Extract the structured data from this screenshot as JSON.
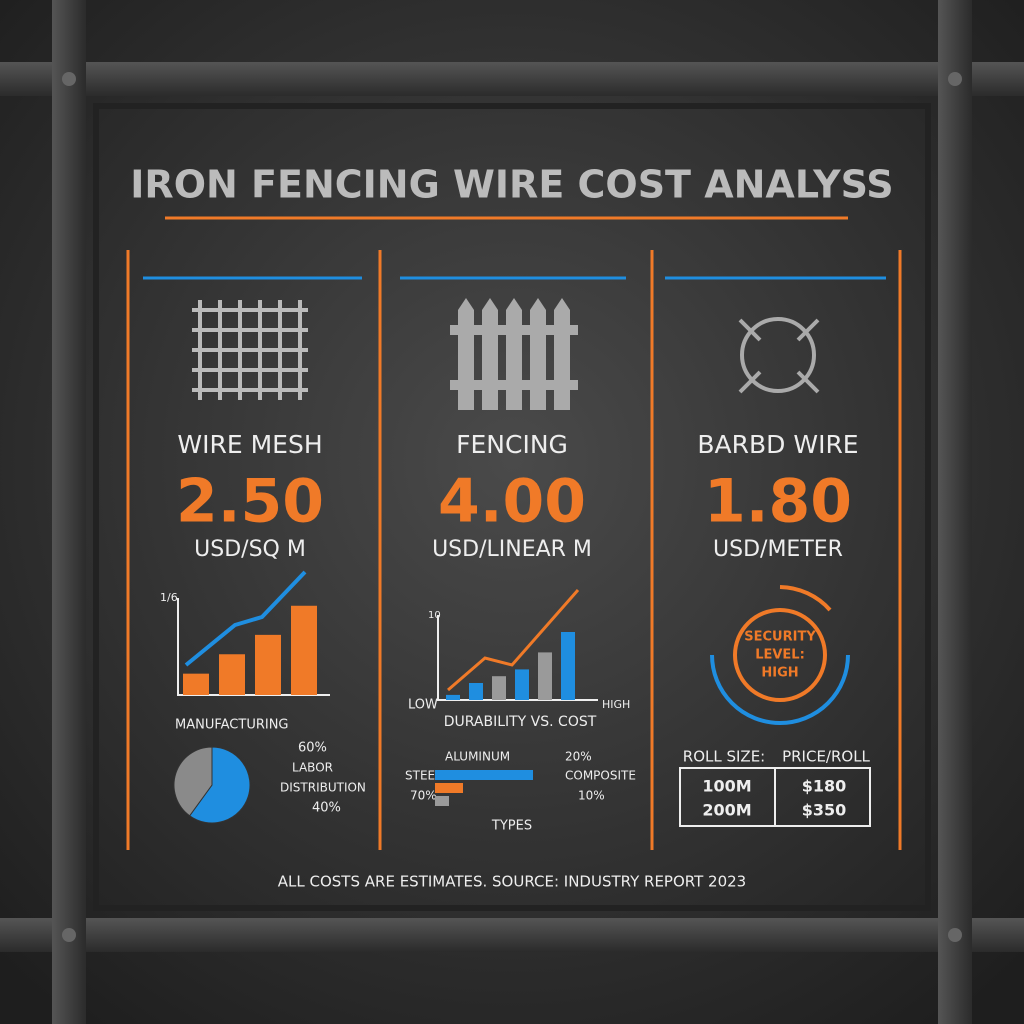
{
  "title": "IRON FENCING WIRE COST ANALYSS",
  "footer": "ALL COSTS ARE ESTIMATES. SOURCE: INDUSTRY REPORT 2023",
  "panels": [
    {
      "name": "WIRE MESH",
      "price": "2.50",
      "unit": "USD/SQ M"
    },
    {
      "name": "FENCING",
      "price": "4.00",
      "unit": "USD/LINEAR M"
    },
    {
      "name": "BARBD WIRE",
      "price": "1.80",
      "unit": "USD/METER"
    }
  ],
  "mesh_chart": {
    "type": "bar",
    "axis_label": "1/6",
    "values": [
      22,
      42,
      62,
      92
    ],
    "ylim": [
      0,
      100
    ],
    "color": "#f07a28"
  },
  "mesh_pie": {
    "type": "pie",
    "title": "MANUFACTURING",
    "values": [
      60,
      40
    ],
    "value_labels": [
      "60%",
      "40%"
    ],
    "legend": [
      "LABOR",
      "DISTRIBUTION"
    ],
    "colors": [
      "#1f8ee0",
      "#8a8a8a"
    ]
  },
  "fencing_chart": {
    "type": "bar",
    "axis_label": "10",
    "values": [
      0.6,
      2,
      2.8,
      3.6,
      5.6,
      8
    ],
    "ylim": [
      0,
      10
    ],
    "colors": [
      "#1f8ee0",
      "#1f8ee0",
      "#9a9a9a",
      "#1f8ee0",
      "#9a9a9a",
      "#1f8ee0"
    ],
    "low_label": "LOW",
    "high_label": "HIGH",
    "caption": "DURABILITY VS. COST"
  },
  "types": {
    "caption": "TYPES",
    "items": [
      {
        "name": "STEEL",
        "value": 70,
        "label": "70%",
        "color": "#1f8ee0"
      },
      {
        "name": "ALUMINUM",
        "value": 20,
        "label": "20%",
        "color": "#f07a28"
      },
      {
        "name": "COMPOSITE",
        "value": 10,
        "label": "10%",
        "color": "#9a9a9a"
      }
    ]
  },
  "security": [
    "SECURITY",
    "LEVEL:",
    "HIGH"
  ],
  "roll_table": {
    "headers": [
      "ROLL SIZE:",
      "PRICE/ROLL"
    ],
    "rows": [
      [
        "100M",
        "$180"
      ],
      [
        "200M",
        "$350"
      ]
    ]
  }
}
